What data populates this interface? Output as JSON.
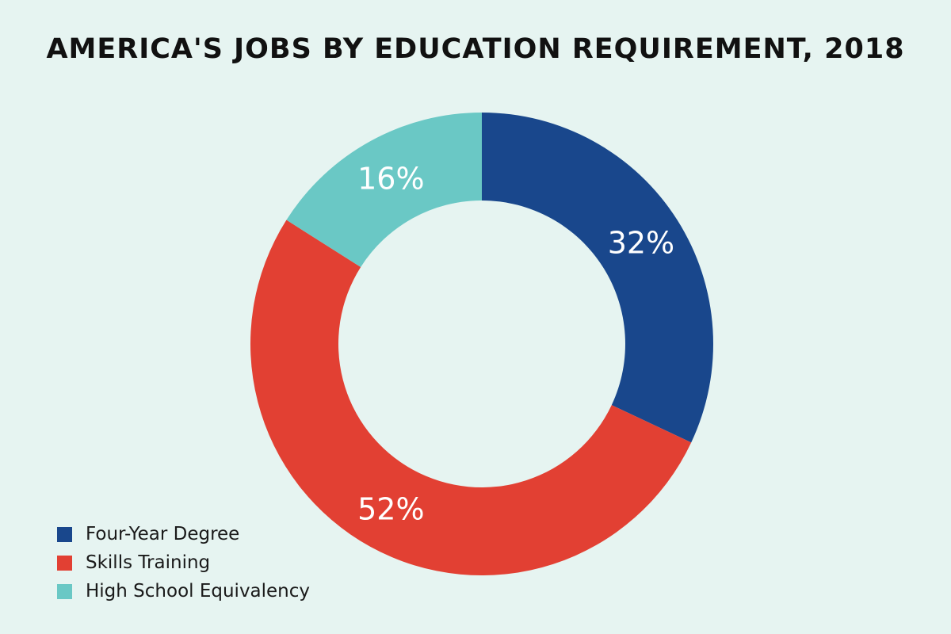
{
  "chart_data": {
    "type": "pie",
    "variant": "donut",
    "title": "AMERICA'S JOBS BY EDUCATION REQUIREMENT, 2018",
    "categories": [
      "Four-Year Degree",
      "Skills Training",
      "High School Equivalency"
    ],
    "values": [
      32,
      52,
      16
    ],
    "value_labels": [
      "32%",
      "52%",
      "16%"
    ],
    "colors": [
      "#19478c",
      "#e24033",
      "#6ac8c5"
    ],
    "legend_position": "bottom-left"
  }
}
